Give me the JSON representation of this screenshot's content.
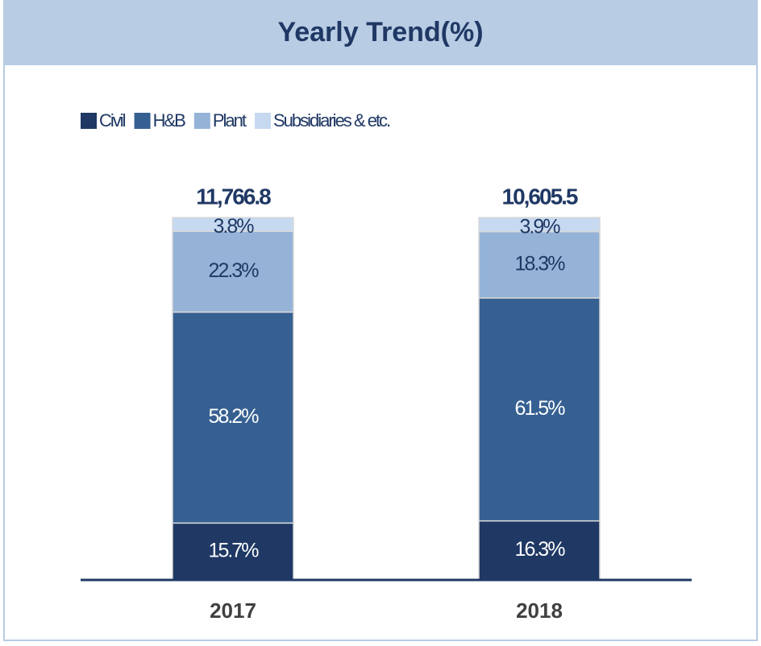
{
  "chart_data": {
    "type": "stacked_bar",
    "title": "Yearly Trend(%)",
    "categories": [
      "2017",
      "2018"
    ],
    "series": [
      {
        "name": "Civil",
        "color": "#1f3864",
        "values": [
          15.7,
          16.3
        ],
        "value_labels": [
          "15.7%",
          "16.3%"
        ]
      },
      {
        "name": "H&B",
        "color": "#366092",
        "values": [
          58.2,
          61.5
        ],
        "value_labels": [
          "58.2%",
          "61.5%"
        ]
      },
      {
        "name": "Plant",
        "color": "#95b3d7",
        "values": [
          22.3,
          18.3
        ],
        "value_labels": [
          "22.3%",
          "18.3%"
        ]
      },
      {
        "name": "Subsidiaries & etc.",
        "color": "#c6d9f1",
        "values": [
          3.8,
          3.9
        ],
        "value_labels": [
          "3.8%",
          "3.9%"
        ]
      }
    ],
    "totals": {
      "values": [
        11766.8,
        10605.5
      ],
      "value_labels": [
        "11,766.8",
        "10,605.5"
      ]
    },
    "ylim": [
      0,
      100
    ]
  }
}
